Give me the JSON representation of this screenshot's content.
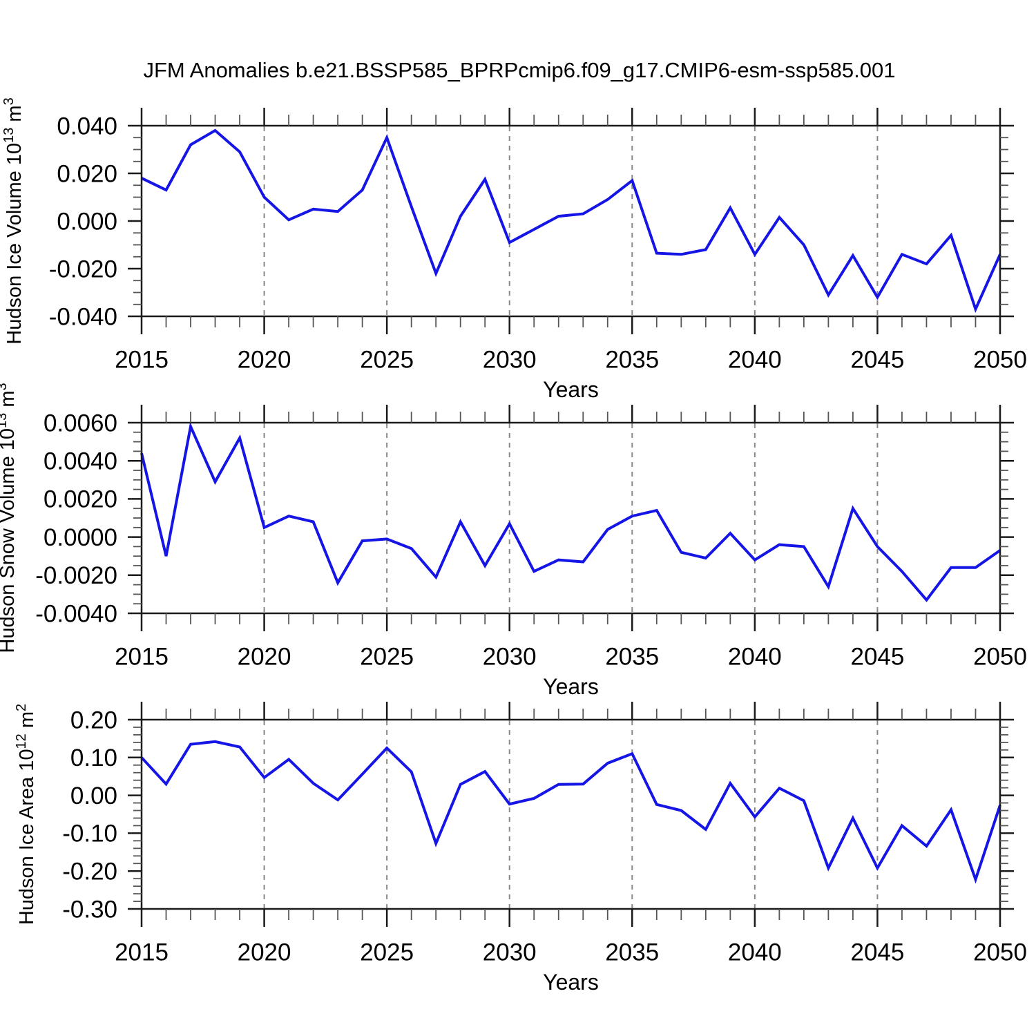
{
  "title": "JFM Anomalies b.e21.BSSP585_BPRPcmip6.f09_g17.CMIP6-esm-ssp585.001",
  "colors": {
    "line": "#1515e6",
    "frame": "#1a1a1a",
    "gridline": "#888888",
    "minor_tick": "#555555",
    "text": "#000000",
    "background": "#ffffff"
  },
  "x_axis": {
    "label": "Years",
    "range": [
      2015,
      2050
    ],
    "major_step": 5,
    "minor_step": 1,
    "major_ticks": [
      2015,
      2020,
      2025,
      2030,
      2035,
      2040,
      2045,
      2050
    ],
    "tick_labels": [
      "2015",
      "2020",
      "2025",
      "2030",
      "2035",
      "2040",
      "2045",
      "2050"
    ],
    "gridline_years": [
      2020,
      2025,
      2030,
      2035,
      2040,
      2045
    ]
  },
  "years": [
    2015,
    2016,
    2017,
    2018,
    2019,
    2020,
    2021,
    2022,
    2023,
    2024,
    2025,
    2026,
    2027,
    2028,
    2029,
    2030,
    2031,
    2032,
    2033,
    2034,
    2035,
    2036,
    2037,
    2038,
    2039,
    2040,
    2041,
    2042,
    2043,
    2044,
    2045,
    2046,
    2047,
    2048,
    2049,
    2050
  ],
  "chart_data": [
    {
      "id": "hudson-ice-volume",
      "type": "line",
      "ylabel_text": "Hudson Ice Volume 10^13 m^3",
      "ylabel_parts": [
        {
          "text": "Hudson Ice Volume 10"
        },
        {
          "text": "13",
          "sup": true
        },
        {
          "text": " m"
        },
        {
          "text": "3",
          "sup": true
        }
      ],
      "xlabel": "Years",
      "ylim": [
        -0.04,
        0.04
      ],
      "y_major_step": 0.02,
      "y_minor_step": 0.005,
      "ytick_values": [
        0.04,
        0.02,
        0.0,
        -0.02,
        -0.04
      ],
      "ytick_labels": [
        "0.040",
        "0.020",
        "0.000",
        "-0.020",
        "-0.040"
      ],
      "grid": "vertical-dashed",
      "legend": "none",
      "values": [
        0.018,
        0.013,
        0.032,
        0.038,
        0.029,
        0.01,
        0.0005,
        0.005,
        0.004,
        0.013,
        0.035,
        0.006,
        -0.022,
        0.002,
        0.0175,
        -0.009,
        -0.0035,
        0.002,
        0.003,
        0.009,
        0.017,
        -0.0135,
        -0.014,
        -0.012,
        0.0055,
        -0.014,
        0.0015,
        -0.01,
        -0.031,
        -0.0145,
        -0.032,
        -0.014,
        -0.018,
        -0.006,
        -0.037,
        -0.014
      ]
    },
    {
      "id": "hudson-snow-volume",
      "type": "line",
      "ylabel_text": "Hudson Snow Volume 10^13 m^3",
      "ylabel_parts": [
        {
          "text": "Hudson Snow Volume 10"
        },
        {
          "text": "13",
          "sup": true
        },
        {
          "text": " m"
        },
        {
          "text": "3",
          "sup": true
        }
      ],
      "xlabel": "Years",
      "ylim": [
        -0.004,
        0.006
      ],
      "y_major_step": 0.002,
      "y_minor_step": 0.0005,
      "ytick_values": [
        0.006,
        0.004,
        0.002,
        0.0,
        -0.002,
        -0.004
      ],
      "ytick_labels": [
        "0.0060",
        "0.0040",
        "0.0020",
        "0.0000",
        "-0.0020",
        "-0.0040"
      ],
      "grid": "vertical-dashed",
      "legend": "none",
      "values": [
        0.0044,
        -0.001,
        0.0058,
        0.0029,
        0.0052,
        0.0005,
        0.0011,
        0.0008,
        -0.0024,
        -0.0002,
        -0.0001,
        -0.0006,
        -0.0021,
        0.0008,
        -0.0015,
        0.0007,
        -0.0018,
        -0.0012,
        -0.0013,
        0.0004,
        0.0011,
        0.0014,
        -0.0008,
        -0.0011,
        0.0002,
        -0.0012,
        -0.0004,
        -0.0005,
        -0.0026,
        0.0015,
        -0.0005,
        -0.0018,
        -0.0033,
        -0.0016,
        -0.0016,
        -0.0007
      ]
    },
    {
      "id": "hudson-ice-area",
      "type": "line",
      "ylabel_text": "Hudson Ice Area 10^12 m^2",
      "ylabel_parts": [
        {
          "text": "Hudson Ice Area 10"
        },
        {
          "text": "12",
          "sup": true
        },
        {
          "text": " m"
        },
        {
          "text": "2",
          "sup": true
        }
      ],
      "xlabel": "Years",
      "ylim": [
        -0.3,
        0.2
      ],
      "y_major_step": 0.1,
      "y_minor_step": 0.02,
      "ytick_values": [
        0.2,
        0.1,
        0.0,
        -0.1,
        -0.2,
        -0.3
      ],
      "ytick_labels": [
        "0.20",
        "0.10",
        "0.00",
        "-0.10",
        "-0.20",
        "-0.30"
      ],
      "grid": "vertical-dashed",
      "legend": "none",
      "values": [
        0.1,
        0.03,
        0.135,
        0.142,
        0.128,
        0.047,
        0.095,
        0.032,
        -0.012,
        0.056,
        0.125,
        0.062,
        -0.127,
        0.029,
        0.063,
        -0.023,
        -0.008,
        0.029,
        0.03,
        0.085,
        0.11,
        -0.024,
        -0.04,
        -0.09,
        0.032,
        -0.057,
        0.019,
        -0.014,
        -0.192,
        -0.06,
        -0.192,
        -0.08,
        -0.134,
        -0.038,
        -0.222,
        -0.026
      ]
    }
  ]
}
